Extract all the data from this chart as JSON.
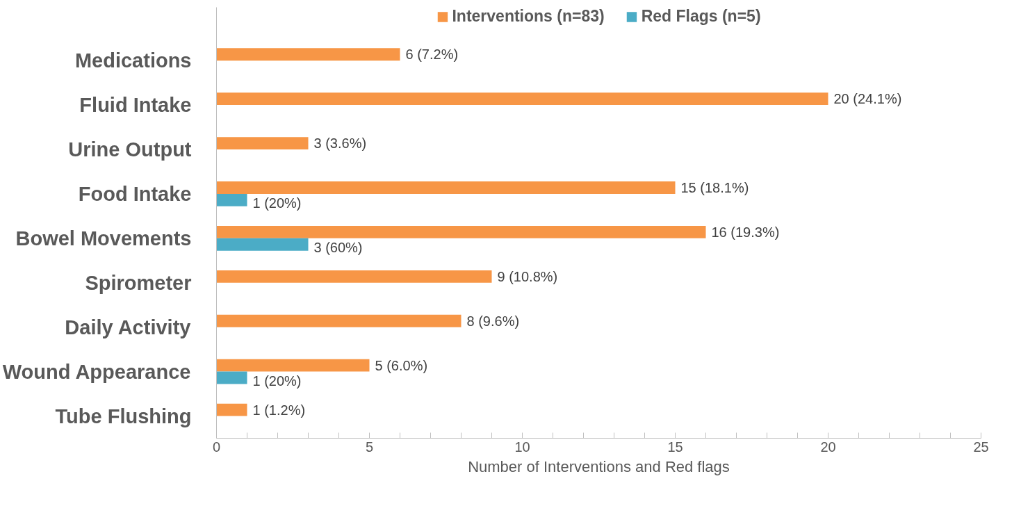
{
  "chart_data": {
    "type": "bar",
    "orientation": "horizontal",
    "xlabel": "Number of Interventions and Red flags",
    "categories": [
      "Medications",
      "Fluid Intake",
      "Urine Output",
      "Food Intake",
      "Bowel Movements",
      "Spirometer",
      "Daily Activity",
      "Wound Appearance",
      "Tube Flushing"
    ],
    "series": [
      {
        "name": "Interventions (n=83)",
        "color": "#f79646",
        "values": [
          6,
          20,
          3,
          15,
          16,
          9,
          8,
          5,
          1
        ],
        "value_labels": [
          "6  (7.2%)",
          "20   (24.1%)",
          "3   (3.6%)",
          "15   (18.1%)",
          "16   (19.3%)",
          "9  (10.8%)",
          "8   (9.6%)",
          "5   (6.0%)",
          "1   (1.2%)"
        ]
      },
      {
        "name": "Red Flags (n=5)",
        "color": "#4bacc6",
        "values": [
          null,
          null,
          null,
          1,
          3,
          null,
          null,
          1,
          null
        ],
        "value_labels": [
          null,
          null,
          null,
          "1   (20%)",
          "3  (60%)",
          null,
          null,
          "1  (20%)",
          null
        ]
      }
    ],
    "xlim": [
      0,
      25
    ],
    "xticks": [
      0,
      5,
      10,
      15,
      20,
      25
    ],
    "grid": false,
    "legend": "top"
  }
}
